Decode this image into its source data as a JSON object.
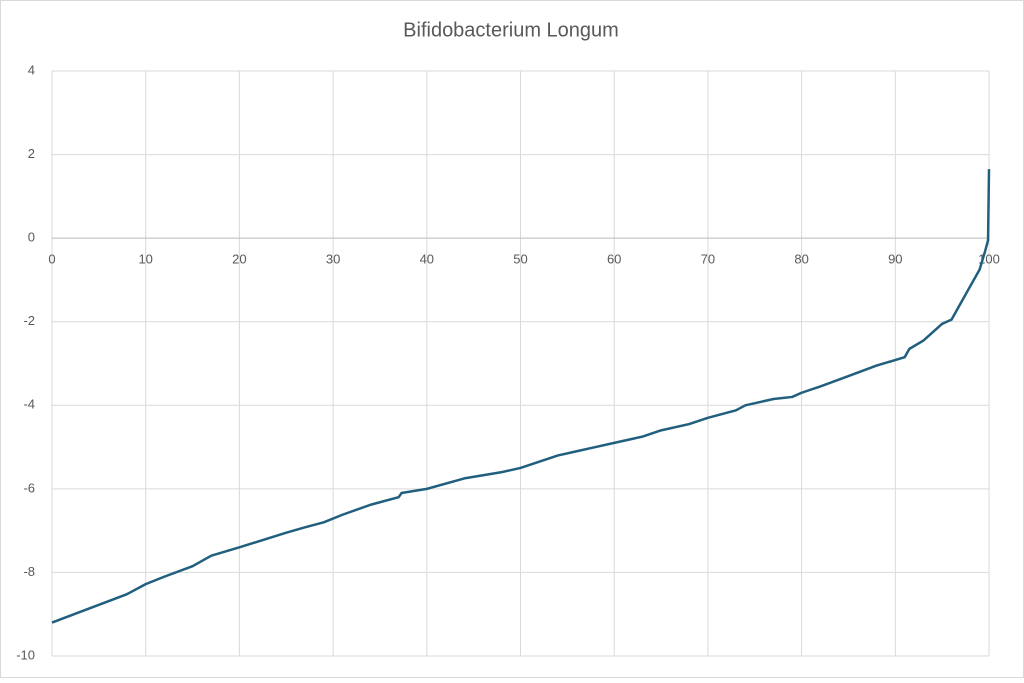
{
  "chart_data": {
    "type": "line",
    "title": "Bifidobacterium Longum",
    "xlim": [
      0,
      100
    ],
    "xticks": [
      0,
      10,
      20,
      30,
      40,
      50,
      60,
      70,
      80,
      90,
      100
    ],
    "ylim": [
      -10,
      4
    ],
    "yticks": [
      4,
      2,
      0,
      -2,
      -4,
      -6,
      -8,
      -10
    ],
    "grid": true,
    "series": [
      {
        "color": "#215f7e",
        "x": [
          0,
          8,
          10,
          12,
          15,
          17,
          20,
          25,
          27,
          29,
          31,
          34,
          37,
          37.3,
          40,
          44,
          48,
          50,
          52,
          54,
          56,
          58,
          60,
          63,
          65,
          68,
          70,
          73,
          74,
          77,
          79,
          80,
          82,
          85,
          88,
          91,
          91.5,
          93,
          95,
          96,
          97,
          98,
          99,
          99.6,
          99.9,
          100
        ],
        "values": [
          -9.2,
          -8.52,
          -8.28,
          -8.1,
          -7.85,
          -7.6,
          -7.4,
          -7.05,
          -6.92,
          -6.8,
          -6.62,
          -6.38,
          -6.2,
          -6.1,
          -6.0,
          -5.75,
          -5.6,
          -5.5,
          -5.35,
          -5.2,
          -5.1,
          -5.0,
          -4.9,
          -4.75,
          -4.6,
          -4.45,
          -4.3,
          -4.12,
          -4.0,
          -3.85,
          -3.8,
          -3.7,
          -3.55,
          -3.3,
          -3.05,
          -2.85,
          -2.65,
          -2.45,
          -2.05,
          -1.95,
          -1.55,
          -1.15,
          -0.75,
          -0.3,
          -0.05,
          1.65
        ]
      }
    ]
  }
}
